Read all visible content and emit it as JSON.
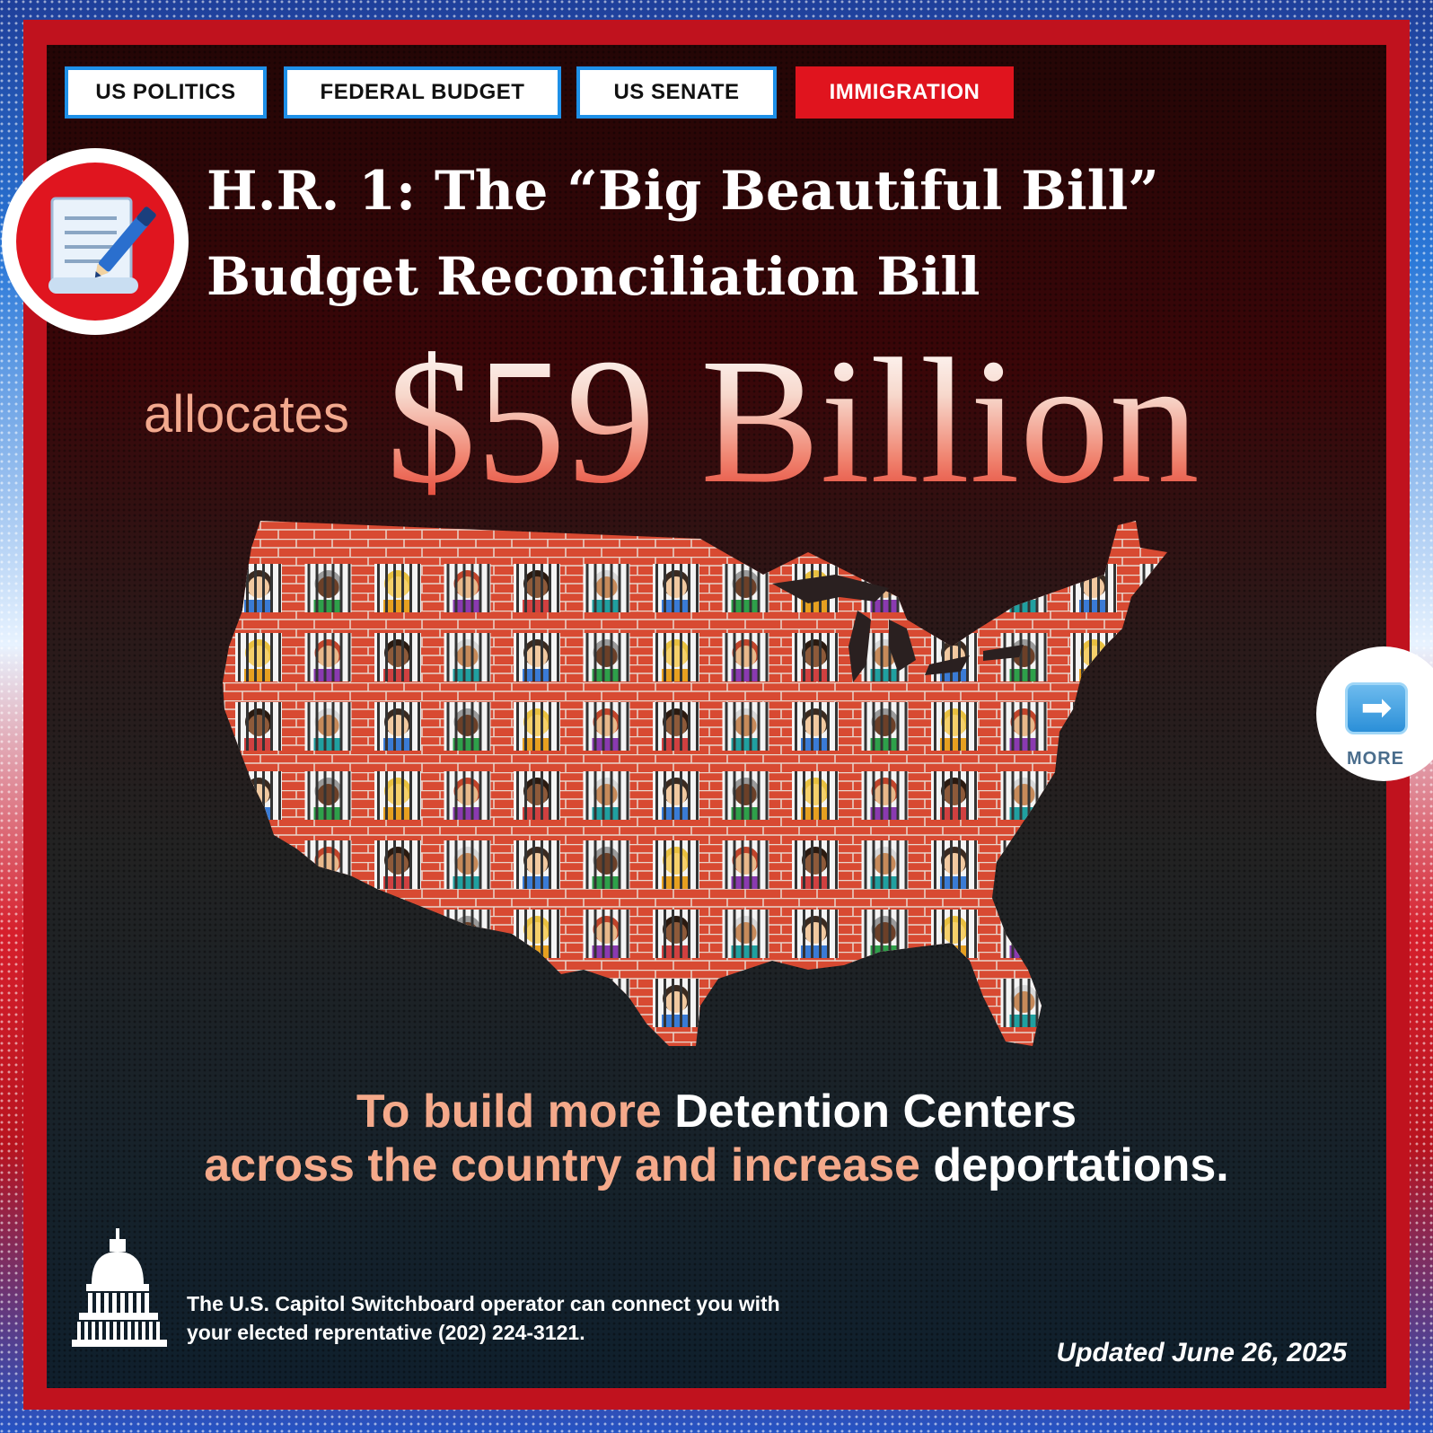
{
  "tags": [
    {
      "label": "US POLITICS",
      "active": false
    },
    {
      "label": "FEDERAL BUDGET",
      "active": false
    },
    {
      "label": "US SENATE",
      "active": false
    },
    {
      "label": "IMMIGRATION",
      "active": true
    }
  ],
  "header": {
    "icon": "document-pen-icon",
    "title_line1": "H.R. 1: The “Big Beautiful Bill”",
    "title_line2": "Budget Reconciliation Bill"
  },
  "headline": {
    "prefix": "allocates",
    "amount": "$59 Billion"
  },
  "map": {
    "icon": "us-map-jail-cells-icon"
  },
  "caption": {
    "line1_part1": "To build more ",
    "line1_part2": "Detention Centers",
    "line2_part1": "across the country and increase ",
    "line2_part2": "deportations."
  },
  "footer": {
    "icon": "capitol-dome-icon",
    "note_line1": "The U.S. Capitol Switchboard operator can connect you with",
    "note_line2": "your elected reprentative (202) 224-3121.",
    "updated": "Updated June 26, 2025"
  },
  "more": {
    "icon": "right-arrow-icon",
    "label": "MORE"
  },
  "colors": {
    "accent_red": "#e0141e",
    "tag_border": "#1e90e8",
    "peach": "#f4a98a"
  }
}
